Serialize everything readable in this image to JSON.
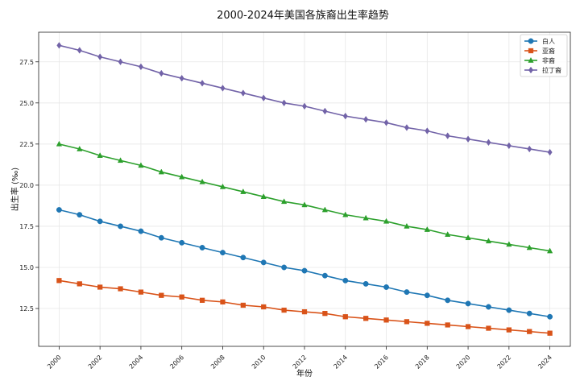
{
  "chart_data": {
    "type": "line",
    "title": "2000-2024年美国各族裔出生率趋势",
    "xlabel": "年份",
    "ylabel": "出生率 (‰)",
    "x": [
      2000,
      2001,
      2002,
      2003,
      2004,
      2005,
      2006,
      2007,
      2008,
      2009,
      2010,
      2011,
      2012,
      2013,
      2014,
      2015,
      2016,
      2017,
      2018,
      2019,
      2020,
      2021,
      2022,
      2023,
      2024
    ],
    "xticks": [
      "2000",
      "2002",
      "2004",
      "2006",
      "2008",
      "2010",
      "2012",
      "2014",
      "2016",
      "2018",
      "2020",
      "2022",
      "2024"
    ],
    "yticks": [
      "12.5",
      "15.0",
      "17.5",
      "20.0",
      "22.5",
      "25.0",
      "27.5"
    ],
    "ylim": [
      10.2,
      29.3
    ],
    "xlim": [
      1999.0,
      2025.0
    ],
    "grid": true,
    "legend_position": "top-right",
    "series": [
      {
        "name": "白人",
        "color": "#1f77b4",
        "marker": "circle",
        "values": [
          18.5,
          18.2,
          17.8,
          17.5,
          17.2,
          16.8,
          16.5,
          16.2,
          15.9,
          15.6,
          15.3,
          15.0,
          14.8,
          14.5,
          14.2,
          14.0,
          13.8,
          13.5,
          13.3,
          13.0,
          12.8,
          12.6,
          12.4,
          12.2,
          12.0
        ]
      },
      {
        "name": "亚裔",
        "color": "#d95319",
        "marker": "square",
        "values": [
          14.2,
          14.0,
          13.8,
          13.7,
          13.5,
          13.3,
          13.2,
          13.0,
          12.9,
          12.7,
          12.6,
          12.4,
          12.3,
          12.2,
          12.0,
          11.9,
          11.8,
          11.7,
          11.6,
          11.5,
          11.4,
          11.3,
          11.2,
          11.1,
          11.0
        ]
      },
      {
        "name": "非裔",
        "color": "#2ca02c",
        "marker": "triangle",
        "values": [
          22.5,
          22.2,
          21.8,
          21.5,
          21.2,
          20.8,
          20.5,
          20.2,
          19.9,
          19.6,
          19.3,
          19.0,
          18.8,
          18.5,
          18.2,
          18.0,
          17.8,
          17.5,
          17.3,
          17.0,
          16.8,
          16.6,
          16.4,
          16.2,
          16.0
        ]
      },
      {
        "name": "拉丁裔",
        "color": "#7263a8",
        "marker": "diamond",
        "values": [
          28.5,
          28.2,
          27.8,
          27.5,
          27.2,
          26.8,
          26.5,
          26.2,
          25.9,
          25.6,
          25.3,
          25.0,
          24.8,
          24.5,
          24.2,
          24.0,
          23.8,
          23.5,
          23.3,
          23.0,
          22.8,
          22.6,
          22.4,
          22.2,
          22.0
        ]
      }
    ]
  }
}
